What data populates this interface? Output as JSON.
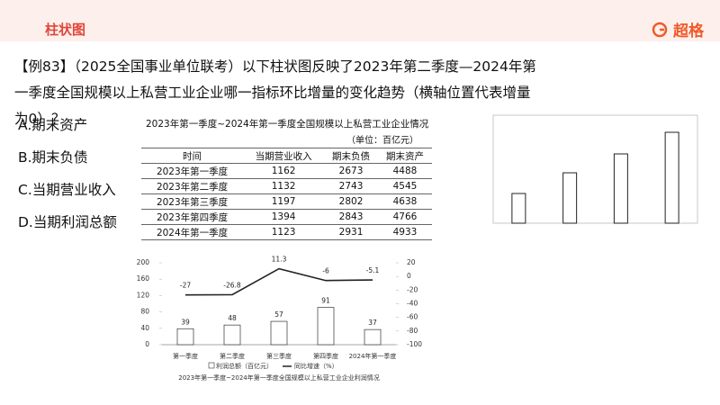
{
  "header": {
    "title": "柱状图",
    "brand": "超格"
  },
  "question": "【例83】（2025全国事业单位联考）以下柱状图反映了2023年第二季度—2024年第一季度全国规模以上私营工业企业哪一指标环比增量的变化趋势（横轴位置代表增量为0）？",
  "options": [
    "A.期末资产",
    "B.期末负债",
    "C.当期营业收入",
    "D.当期利润总额"
  ],
  "table": {
    "title": "2023年第一季度~2024年第一季度全国规模以上私营工业企业情况",
    "unit": "（单位：百亿元）",
    "columns": [
      "时间",
      "当期营业收入",
      "期末负债",
      "期末资产"
    ],
    "rows": [
      [
        "2023年第一季度",
        1162,
        2673,
        4488
      ],
      [
        "2023年第二季度",
        1132,
        2743,
        4545
      ],
      [
        "2023年第三季度",
        1197,
        2802,
        4638
      ],
      [
        "2023年第四季度",
        1394,
        2843,
        4766
      ],
      [
        "2024年第一季度",
        1123,
        2931,
        4933
      ]
    ]
  },
  "chart_data": [
    {
      "type": "combo",
      "title": "2023年第一季度~2024年第一季度全国规模以上私营工业企业利润情况",
      "categories": [
        "第一季度",
        "第二季度",
        "第三季度",
        "第四季度",
        "2024年第一季度"
      ],
      "series": [
        {
          "name": "利润总额（百亿元）",
          "type": "bar",
          "color": "#333333",
          "values": [
            39,
            48,
            57,
            91,
            37
          ]
        },
        {
          "name": "同比增速（%）",
          "type": "line",
          "axis": "y2",
          "color": "#222222",
          "values": [
            -27,
            -26.8,
            11.3,
            -6,
            -5.1
          ]
        }
      ],
      "ylim": [
        0,
        200
      ],
      "yticks": [
        0,
        40,
        80,
        120,
        160,
        200
      ],
      "y2lim": [
        -100,
        20
      ],
      "y2ticks": [
        -100,
        -80,
        -60,
        -40,
        -20,
        0,
        20
      ]
    },
    {
      "type": "bar",
      "values": [
        33,
        56,
        77,
        101
      ],
      "color": "#222222",
      "ylim": [
        0,
        120
      ]
    }
  ]
}
